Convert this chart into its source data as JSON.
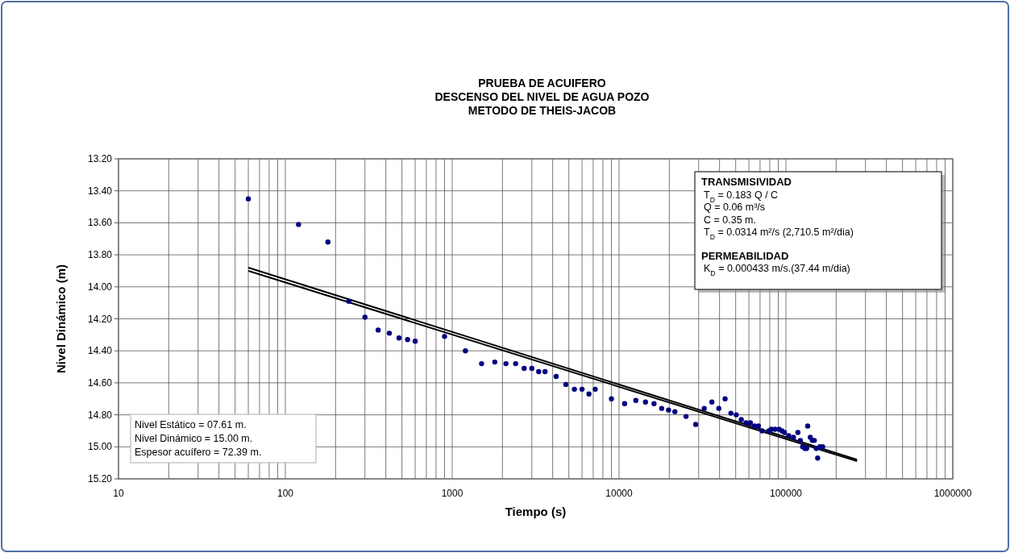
{
  "chart_data": {
    "type": "scatter",
    "title": "PRUEBA DE ACUIFERO\nDESCENSO DEL NIVEL DE AGUA POZO\nMETODO  DE THEIS-JACOB",
    "xlabel": "Tiempo (s)",
    "ylabel": "Nivel Dinámico (m)",
    "log": "x",
    "grid": true,
    "marker": "circle",
    "xlim": [
      10,
      1000000
    ],
    "xticks": [
      10,
      100,
      1000,
      10000,
      100000,
      1000000
    ],
    "ylim": [
      15.2,
      13.2
    ],
    "yticks": [
      {
        "value": 13.2,
        "label": "13.20"
      },
      {
        "value": 13.4,
        "label": "13.40"
      },
      {
        "value": 13.6,
        "label": "13.60"
      },
      {
        "value": 13.8,
        "label": "13.80"
      },
      {
        "value": 14.0,
        "label": "14.00"
      },
      {
        "value": 14.2,
        "label": "14.20"
      },
      {
        "value": 14.4,
        "label": "14.40"
      },
      {
        "value": 14.6,
        "label": "14.60"
      },
      {
        "value": 14.8,
        "label": "14.80"
      },
      {
        "value": 15.0,
        "label": "15.00"
      },
      {
        "value": 15.2,
        "label": "15.20"
      }
    ],
    "series": [
      {
        "type": "line",
        "marker": "none",
        "color": "#000000",
        "x": [
          60,
          267000
        ],
        "values": [
          13.88,
          15.08
        ]
      },
      {
        "type": "line",
        "marker": "none",
        "color": "#000000",
        "x": [
          60,
          267000
        ],
        "values": [
          13.9,
          15.09
        ]
      },
      {
        "color": "#000080",
        "x": [
          60,
          120,
          180,
          240,
          300,
          360,
          420,
          480,
          540,
          600,
          900,
          1200,
          1500,
          1800,
          2100,
          2400,
          2700,
          3000,
          3300,
          3600,
          4200,
          4800,
          5400,
          6000,
          6600,
          7200,
          9000,
          10800,
          12600,
          14400,
          16200,
          18000,
          19800,
          21600,
          25200,
          28800,
          32400,
          36000,
          39600,
          43200,
          46800,
          50400,
          54000,
          57600,
          61200,
          64800,
          68400,
          72000,
          79200,
          81700,
          86000,
          91000,
          94600,
          98000,
          104000,
          111000,
          118000,
          122000,
          126000,
          130000,
          133000,
          135000,
          140000,
          144000,
          148000,
          152000,
          155000,
          160000,
          166000
        ],
        "values": [
          13.45,
          13.61,
          13.72,
          14.09,
          14.19,
          14.27,
          14.29,
          14.32,
          14.33,
          14.34,
          14.31,
          14.4,
          14.48,
          14.47,
          14.48,
          14.48,
          14.51,
          14.51,
          14.53,
          14.53,
          14.56,
          14.61,
          14.64,
          14.64,
          14.67,
          14.64,
          14.7,
          14.73,
          14.71,
          14.72,
          14.73,
          14.76,
          14.77,
          14.78,
          14.81,
          14.86,
          14.76,
          14.72,
          14.76,
          14.7,
          14.79,
          14.8,
          14.83,
          14.85,
          14.85,
          14.87,
          14.87,
          14.9,
          14.9,
          14.89,
          14.89,
          14.89,
          14.9,
          14.91,
          14.93,
          14.94,
          14.91,
          14.96,
          15.0,
          15.01,
          15.01,
          14.87,
          14.94,
          14.96,
          14.96,
          15.01,
          15.07,
          15.0,
          15.0
        ]
      }
    ],
    "annotations": [
      "TRANSMISIVIDAD",
      "T$_{D}$ = 0.183 Q / C",
      "Q = 0.06     m³/s",
      "C = 0.35 m.",
      "T$_{D}$ = 0.0314 m²/s (2,710.5 m²/dia)",
      "PERMEABILIDAD",
      "K$_{D}$ = 0.000433 m/s.(37.44 m/dia)",
      "Nivel  Estático     = 07.61 m.",
      "Nivel Dinámico    = 15.00 m.",
      "Espesor acuífero = 72.39 m."
    ]
  }
}
